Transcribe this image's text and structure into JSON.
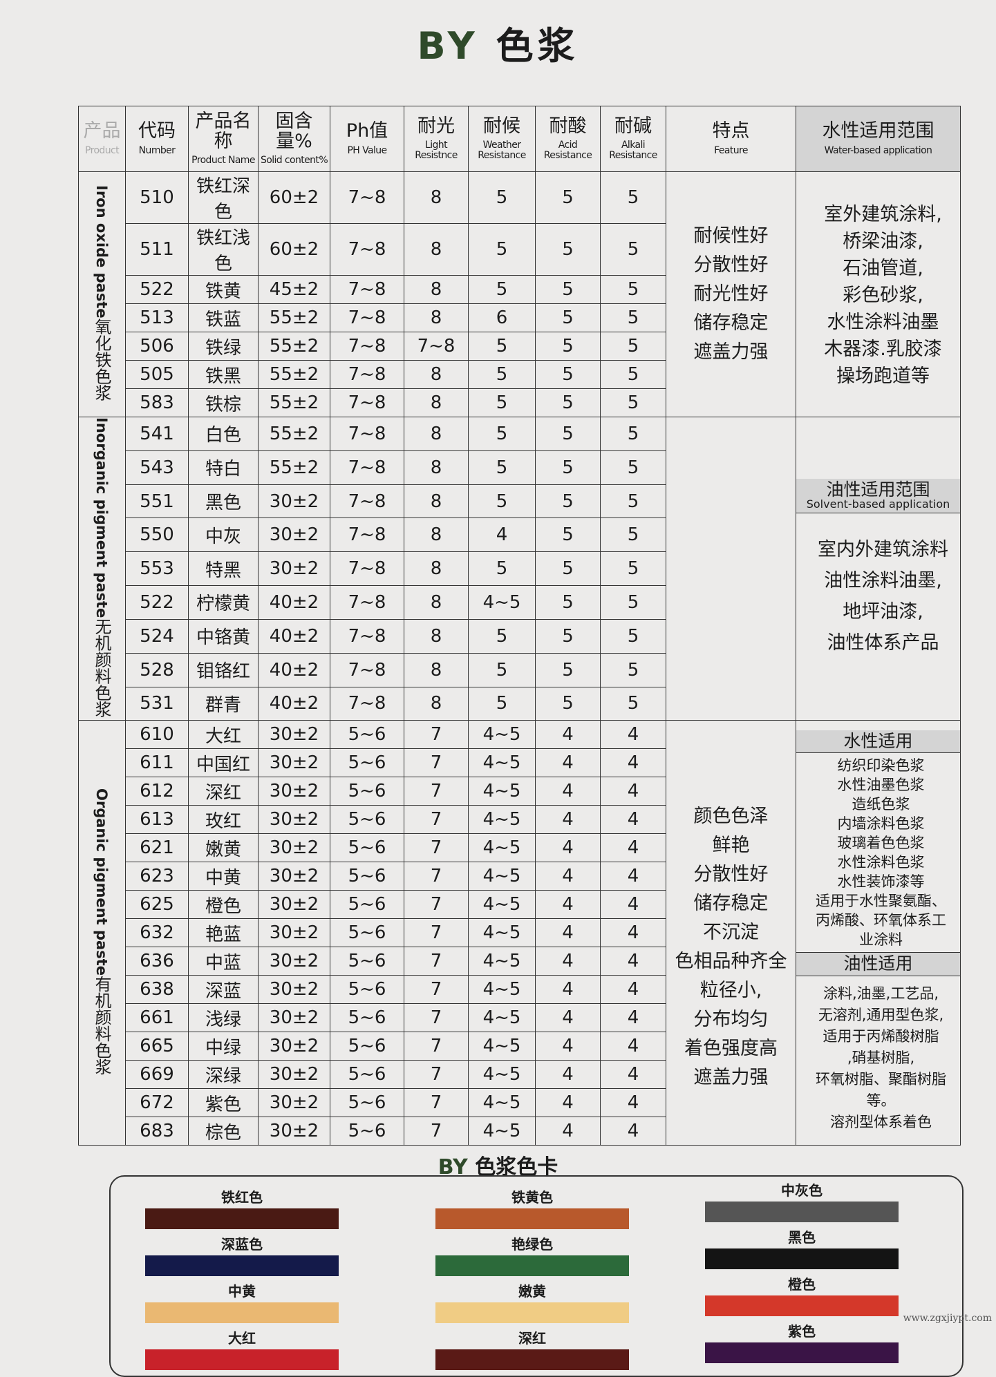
{
  "title": {
    "brand": "BY",
    "text": "色浆"
  },
  "headers": [
    {
      "cn": "产品",
      "en": "Product"
    },
    {
      "cn": "代码",
      "en": "Number"
    },
    {
      "cn": "产品名称",
      "en": "Product Name"
    },
    {
      "cn": "固含量%",
      "en": "Solid content%"
    },
    {
      "cn": "Ph值",
      "en": "PH Value"
    },
    {
      "cn": "耐光",
      "en": "Light Resistnce"
    },
    {
      "cn": "耐候",
      "en": "Weather Resistance"
    },
    {
      "cn": "耐酸",
      "en": "Acid Resistance"
    },
    {
      "cn": "耐碱",
      "en": "Alkali Resistance"
    },
    {
      "cn": "特点",
      "en": "Feature"
    },
    {
      "cn": "水性适用范围",
      "en": "Water-based application"
    }
  ],
  "groups": [
    {
      "cn": "氧化铁色浆",
      "en": "Iron oxide paste",
      "rows": [
        [
          "510",
          "铁红深色",
          "60±2",
          "7~8",
          "8",
          "5",
          "5",
          "5"
        ],
        [
          "511",
          "铁红浅色",
          "60±2",
          "7~8",
          "8",
          "5",
          "5",
          "5"
        ],
        [
          "522",
          "铁黄",
          "45±2",
          "7~8",
          "8",
          "5",
          "5",
          "5"
        ],
        [
          "513",
          "铁蓝",
          "55±2",
          "7~8",
          "8",
          "6",
          "5",
          "5"
        ],
        [
          "506",
          "铁绿",
          "55±2",
          "7~8",
          "7~8",
          "5",
          "5",
          "5"
        ],
        [
          "505",
          "铁黑",
          "55±2",
          "7~8",
          "8",
          "5",
          "5",
          "5"
        ],
        [
          "583",
          "铁棕",
          "55±2",
          "7~8",
          "8",
          "5",
          "5",
          "5"
        ]
      ],
      "features": [
        "耐候性好",
        "分散性好",
        "耐光性好",
        "储存稳定",
        "遮盖力强"
      ],
      "application": [
        "室外建筑涂料,",
        "桥梁油漆,",
        "石油管道,",
        "彩色砂浆,",
        "水性涂料油墨",
        "木器漆.乳胶漆",
        "操场跑道等"
      ]
    },
    {
      "cn": "无机颜料色浆",
      "en": "Inorganic pigment paste",
      "rows": [
        [
          "541",
          "白色",
          "55±2",
          "7~8",
          "8",
          "5",
          "5",
          "5"
        ],
        [
          "543",
          "特白",
          "55±2",
          "7~8",
          "8",
          "5",
          "5",
          "5"
        ],
        [
          "551",
          "黑色",
          "30±2",
          "7~8",
          "8",
          "5",
          "5",
          "5"
        ],
        [
          "550",
          "中灰",
          "30±2",
          "7~8",
          "8",
          "4",
          "5",
          "5"
        ],
        [
          "553",
          "特黑",
          "30±2",
          "7~8",
          "8",
          "5",
          "5",
          "5"
        ],
        [
          "522",
          "柠檬黄",
          "40±2",
          "7~8",
          "8",
          "4~5",
          "5",
          "5"
        ],
        [
          "524",
          "中铬黄",
          "40±2",
          "7~8",
          "8",
          "5",
          "5",
          "5"
        ],
        [
          "528",
          "钼铬红",
          "40±2",
          "7~8",
          "8",
          "5",
          "5",
          "5"
        ],
        [
          "531",
          "群青",
          "40±2",
          "7~8",
          "8",
          "5",
          "5",
          "5"
        ]
      ],
      "features": [],
      "subhead": {
        "cn": "油性适用范围",
        "en": "Solvent-based application"
      },
      "application": [
        "室内外建筑涂料",
        "油性涂料油墨,",
        "地坪油漆,",
        "油性体系产品"
      ]
    },
    {
      "cn": "有机颜料色浆",
      "en": "Organic pigment paste",
      "rows": [
        [
          "610",
          "大红",
          "30±2",
          "5~6",
          "7",
          "4~5",
          "4",
          "4"
        ],
        [
          "611",
          "中国红",
          "30±2",
          "5~6",
          "7",
          "4~5",
          "4",
          "4"
        ],
        [
          "612",
          "深红",
          "30±2",
          "5~6",
          "7",
          "4~5",
          "4",
          "4"
        ],
        [
          "613",
          "玫红",
          "30±2",
          "5~6",
          "7",
          "4~5",
          "4",
          "4"
        ],
        [
          "621",
          "嫩黄",
          "30±2",
          "5~6",
          "7",
          "4~5",
          "4",
          "4"
        ],
        [
          "623",
          "中黄",
          "30±2",
          "5~6",
          "7",
          "4~5",
          "4",
          "4"
        ],
        [
          "625",
          "橙色",
          "30±2",
          "5~6",
          "7",
          "4~5",
          "4",
          "4"
        ],
        [
          "632",
          "艳蓝",
          "30±2",
          "5~6",
          "7",
          "4~5",
          "4",
          "4"
        ],
        [
          "636",
          "中蓝",
          "30±2",
          "5~6",
          "7",
          "4~5",
          "4",
          "4"
        ],
        [
          "638",
          "深蓝",
          "30±2",
          "5~6",
          "7",
          "4~5",
          "4",
          "4"
        ],
        [
          "661",
          "浅绿",
          "30±2",
          "5~6",
          "7",
          "4~5",
          "4",
          "4"
        ],
        [
          "665",
          "中绿",
          "30±2",
          "5~6",
          "7",
          "4~5",
          "4",
          "4"
        ],
        [
          "669",
          "深绿",
          "30±2",
          "5~6",
          "7",
          "4~5",
          "4",
          "4"
        ],
        [
          "672",
          "紫色",
          "30±2",
          "5~6",
          "7",
          "4~5",
          "4",
          "4"
        ],
        [
          "683",
          "棕色",
          "30±2",
          "5~6",
          "7",
          "4~5",
          "4",
          "4"
        ]
      ],
      "features": [
        "颜色色泽",
        "鲜艳",
        "分散性好",
        "储存稳定",
        "不沉淀",
        "色相品种齐全",
        "粒径小,",
        "分布均匀",
        "着色强度高",
        "遮盖力强"
      ],
      "water_head": "水性适用",
      "water_app": [
        "纺织印染色浆",
        "水性油墨色浆",
        "造纸色浆",
        "内墙涂料色浆",
        "玻璃着色色浆",
        "水性涂料色浆",
        "水性装饰漆等",
        "适用于水性聚氨酯、",
        "丙烯酸、环氧体系工",
        "业涂料"
      ],
      "oil_head": "油性适用",
      "oil_app": [
        "涂料,油墨,工艺品,",
        "无溶剂,通用型色浆,",
        "适用于丙烯酸树脂",
        ",硝基树脂,",
        "环氧树脂、聚酯树脂等。",
        "溶剂型体系着色"
      ]
    }
  ],
  "color_card": {
    "title_brand": "BY",
    "title_text": "色浆色卡",
    "swatches": [
      [
        {
          "name": "铁红色",
          "color": "#4a1a14"
        },
        {
          "name": "深蓝色",
          "color": "#141a4a"
        },
        {
          "name": "中黄",
          "color": "#eab872"
        },
        {
          "name": "大红",
          "color": "#c8222a"
        }
      ],
      [
        {
          "name": "铁黄色",
          "color": "#b8592c"
        },
        {
          "name": "艳绿色",
          "color": "#2c6a3a"
        },
        {
          "name": "嫩黄",
          "color": "#f0cc84"
        },
        {
          "name": "深红",
          "color": "#5a1a16"
        }
      ],
      [
        {
          "name": "中灰色",
          "color": "#555555"
        },
        {
          "name": "黑色",
          "color": "#141414"
        },
        {
          "name": "橙色",
          "color": "#d4382a"
        },
        {
          "name": "紫色",
          "color": "#3a1446"
        }
      ]
    ]
  },
  "watermark": "www.zgxjiypt.com"
}
